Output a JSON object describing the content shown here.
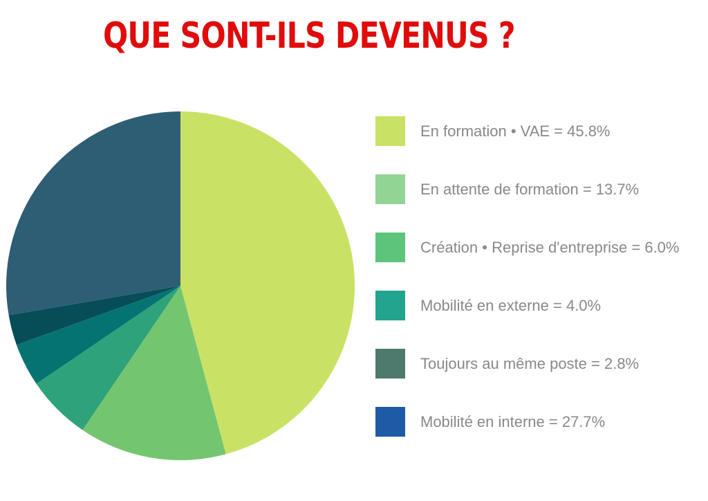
{
  "chart_data": {
    "type": "pie",
    "title": "QUE SONT-ILS DEVENUS ?",
    "legend_position": "right",
    "slices": [
      {
        "label": "En formation • VAE = 45.8%",
        "value": 45.8,
        "legend_color": "#c9e265",
        "slice_color": "#c9e265"
      },
      {
        "label": "En attente de formation = 13.7%",
        "value": 13.7,
        "legend_color": "#91d494",
        "slice_color": "#74c56f"
      },
      {
        "label": "Création • Reprise d'entreprise = 6.0%",
        "value": 6.0,
        "legend_color": "#5cc47b",
        "slice_color": "#2ea27a"
      },
      {
        "label": "Mobilité en externe = 4.0%",
        "value": 4.0,
        "legend_color": "#22a48e",
        "slice_color": "#057371"
      },
      {
        "label": "Toujours au même poste = 2.8%",
        "value": 2.8,
        "legend_color": "#4e7a6d",
        "slice_color": "#074d58"
      },
      {
        "label": "Mobilité en interne = 27.7%",
        "value": 27.7,
        "legend_color": "#1f5aa6",
        "slice_color": "#2e5e74"
      }
    ]
  }
}
